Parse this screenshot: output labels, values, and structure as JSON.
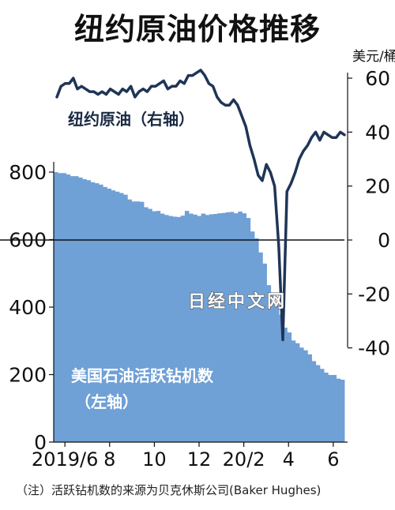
{
  "title": "纽约原油价格推移",
  "footnote": "（注）活跃钻机数的来源为贝克休斯公司(Baker Hughes)",
  "watermark": "日经中文网",
  "colors": {
    "bars": "#6fa0d6",
    "line": "#1f3557",
    "zero_line": "#111111"
  },
  "chart_data": {
    "type": "bar+line",
    "x_tick_labels": [
      "2019/6",
      "8",
      "10",
      "12",
      "20/2",
      "4",
      "6"
    ],
    "left_axis": {
      "ticks": [
        0,
        200,
        400,
        600,
        800
      ],
      "range": [
        0,
        840
      ]
    },
    "right_axis": {
      "unit": "美元/桶",
      "ticks": [
        60,
        40,
        20,
        0,
        -20,
        -40
      ],
      "range": [
        -40,
        60
      ]
    },
    "rig_count": {
      "label_line1": "美国石油活跃钻机数",
      "label_line2": "（左轴）",
      "axis": "left",
      "values": [
        800,
        797,
        797,
        793,
        788,
        788,
        784,
        779,
        776,
        770,
        767,
        763,
        756,
        751,
        746,
        742,
        738,
        733,
        719,
        713,
        713,
        712,
        696,
        691,
        684,
        685,
        677,
        673,
        670,
        668,
        667,
        671,
        685,
        677,
        674,
        670,
        677,
        673,
        675,
        676,
        678,
        679,
        681,
        682,
        678,
        683,
        678,
        664,
        624,
        604,
        562,
        529,
        465,
        438,
        408,
        378,
        339,
        325,
        301,
        293,
        280,
        272,
        260,
        240,
        228,
        217,
        206,
        199,
        199,
        188,
        185
      ]
    },
    "wti_price": {
      "label": "纽约原油（右轴）",
      "axis": "right",
      "values": [
        53,
        57,
        58,
        58,
        60,
        56,
        57,
        56,
        55,
        55,
        54,
        55,
        54,
        56,
        55,
        54,
        56,
        55,
        57,
        53,
        55,
        56,
        55,
        57,
        57,
        58,
        59,
        56,
        57,
        57,
        59,
        58,
        61,
        61,
        62,
        63,
        61,
        58,
        57,
        53,
        51,
        50,
        50,
        52,
        50,
        46,
        42,
        35,
        30,
        24,
        22,
        28,
        25,
        20,
        -2,
        -37,
        18,
        21,
        25,
        30,
        33,
        35,
        38,
        40,
        37,
        40,
        39,
        38,
        38,
        40,
        39
      ]
    }
  }
}
